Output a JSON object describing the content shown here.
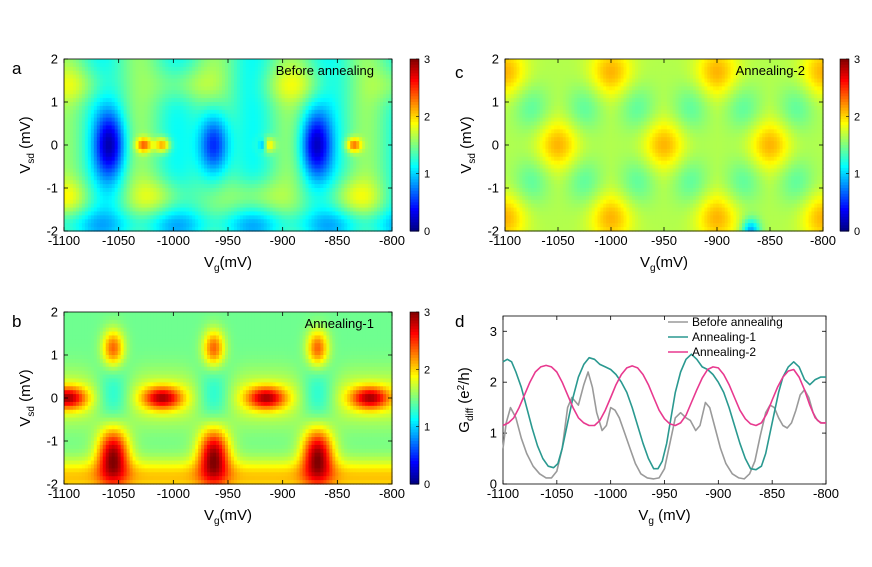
{
  "chart_data": [
    {
      "id": "a",
      "panel_letter": "a",
      "type": "heatmap",
      "label": "Before annealing",
      "xlabel_main": "V",
      "xlabel_sub": "g",
      "xlabel_unit": "(mV)",
      "ylabel_main": "V",
      "ylabel_sub": "sd",
      "ylabel_unit": " (mV)",
      "xlim": [
        -1100,
        -800
      ],
      "ylim": [
        -2,
        2
      ],
      "xticks": [
        "-1100",
        "-1050",
        "-1000",
        "-950",
        "-900",
        "-850",
        "-800"
      ],
      "yticks": [
        "2",
        "1",
        "0",
        "-1",
        "-2"
      ],
      "colorbar": {
        "range": [
          0,
          3
        ],
        "ticks": [
          "3",
          "2",
          "1",
          "0"
        ]
      },
      "model": "before",
      "centers_mV": [
        -1058,
        -963,
        -870
      ]
    },
    {
      "id": "b",
      "panel_letter": "b",
      "type": "heatmap",
      "label": "Annealing-1",
      "xlabel_main": "V",
      "xlabel_sub": "g",
      "xlabel_unit": "(mV)",
      "ylabel_main": "V",
      "ylabel_sub": "sd",
      "ylabel_unit": " (mV)",
      "xlim": [
        -1100,
        -800
      ],
      "ylim": [
        -2,
        2
      ],
      "xticks": [
        "-1100",
        "-1050",
        "-1000",
        "-950",
        "-900",
        "-850",
        "-800"
      ],
      "yticks": [
        "2",
        "1",
        "0",
        "-1",
        "-2"
      ],
      "colorbar": {
        "range": [
          0,
          3
        ],
        "ticks": [
          "3",
          "2",
          "1",
          "0"
        ]
      },
      "model": "ann1",
      "centers_mV": [
        -1055,
        -963,
        -868
      ]
    },
    {
      "id": "c",
      "panel_letter": "c",
      "type": "heatmap",
      "label": "Annealing-2",
      "xlabel_main": "V",
      "xlabel_sub": "g",
      "xlabel_unit": "(mV)",
      "ylabel_main": "V",
      "ylabel_sub": "sd",
      "ylabel_unit": " (mV)",
      "xlim": [
        -1100,
        -800
      ],
      "ylim": [
        -2,
        2
      ],
      "xticks": [
        "-1100",
        "-1050",
        "-1000",
        "-950",
        "-900",
        "-850",
        "-800"
      ],
      "yticks": [
        "2",
        "1",
        "0",
        "-1",
        "-2"
      ],
      "colorbar": {
        "range": [
          0,
          3
        ],
        "ticks": [
          "3",
          "2",
          "1",
          "0"
        ]
      },
      "model": "ann2",
      "period_mV": 100
    },
    {
      "id": "d",
      "panel_letter": "d",
      "type": "line",
      "xlabel_main": "V",
      "xlabel_sub": "g",
      "xlabel_unit": " (mV)",
      "ylabel_main": "G",
      "ylabel_sub": "diff",
      "ylabel_unit_pre": " (e",
      "ylabel_unit_sup": "2",
      "ylabel_unit_post": "/h)",
      "xlim": [
        -1100,
        -800
      ],
      "ylim": [
        0,
        3.3
      ],
      "xticks": [
        "-1100",
        "-1050",
        "-1000",
        "-950",
        "-900",
        "-850",
        "-800"
      ],
      "yticks": [
        "0",
        "1",
        "2",
        "3"
      ],
      "legend_position": "top-right",
      "series": [
        {
          "name": "Before annealing",
          "color": "#9a9a9a",
          "x": [
            -1100,
            -1097,
            -1093,
            -1088,
            -1083,
            -1078,
            -1072,
            -1066,
            -1060,
            -1055,
            -1050,
            -1045,
            -1040,
            -1036,
            -1030,
            -1025,
            -1021,
            -1017,
            -1013,
            -1008,
            -1004,
            -1000,
            -996,
            -992,
            -987,
            -982,
            -977,
            -972,
            -966,
            -960,
            -955,
            -950,
            -945,
            -940,
            -935,
            -930,
            -926,
            -921,
            -917,
            -912,
            -908,
            -903,
            -898,
            -893,
            -887,
            -881,
            -876,
            -871,
            -866,
            -861,
            -856,
            -852,
            -848,
            -844,
            -840,
            -836,
            -832,
            -828,
            -824,
            -820,
            -816,
            -812,
            -808,
            -804,
            -800
          ],
          "y": [
            0.7,
            1.2,
            1.5,
            1.3,
            0.9,
            0.6,
            0.35,
            0.2,
            0.12,
            0.12,
            0.25,
            0.7,
            1.5,
            1.7,
            1.55,
            1.95,
            2.2,
            1.9,
            1.4,
            1.05,
            1.15,
            1.5,
            1.45,
            1.3,
            1.0,
            0.7,
            0.4,
            0.2,
            0.12,
            0.1,
            0.12,
            0.3,
            0.8,
            1.3,
            1.4,
            1.3,
            1.25,
            1.05,
            1.15,
            1.6,
            1.5,
            1.1,
            0.7,
            0.4,
            0.2,
            0.12,
            0.1,
            0.2,
            0.45,
            0.95,
            1.4,
            1.55,
            1.5,
            1.3,
            1.15,
            1.1,
            1.2,
            1.45,
            1.75,
            1.85,
            1.7,
            1.4,
            1.25,
            1.2,
            1.2
          ]
        },
        {
          "name": "Annealing-1",
          "color": "#2a9990",
          "x": [
            -1100,
            -1096,
            -1092,
            -1088,
            -1083,
            -1078,
            -1073,
            -1068,
            -1063,
            -1058,
            -1053,
            -1049,
            -1045,
            -1040,
            -1035,
            -1030,
            -1025,
            -1020,
            -1015,
            -1010,
            -1005,
            -1000,
            -995,
            -990,
            -985,
            -980,
            -975,
            -970,
            -965,
            -960,
            -956,
            -952,
            -948,
            -944,
            -940,
            -935,
            -930,
            -925,
            -920,
            -915,
            -910,
            -905,
            -900,
            -895,
            -890,
            -885,
            -880,
            -875,
            -870,
            -865,
            -860,
            -856,
            -852,
            -848,
            -844,
            -840,
            -835,
            -830,
            -825,
            -820,
            -815,
            -810,
            -805,
            -800
          ],
          "y": [
            2.4,
            2.45,
            2.4,
            2.2,
            1.9,
            1.5,
            1.1,
            0.75,
            0.5,
            0.35,
            0.32,
            0.4,
            0.7,
            1.2,
            1.7,
            2.1,
            2.35,
            2.48,
            2.45,
            2.35,
            2.3,
            2.25,
            2.15,
            2.0,
            1.8,
            1.5,
            1.15,
            0.8,
            0.5,
            0.3,
            0.3,
            0.45,
            0.8,
            1.3,
            1.8,
            2.2,
            2.45,
            2.55,
            2.45,
            2.3,
            2.25,
            2.15,
            2.0,
            1.8,
            1.5,
            1.15,
            0.8,
            0.5,
            0.3,
            0.28,
            0.35,
            0.6,
            1.0,
            1.4,
            1.8,
            2.1,
            2.3,
            2.4,
            2.3,
            2.05,
            1.95,
            2.05,
            2.1,
            2.1
          ]
        },
        {
          "name": "Annealing-2",
          "color": "#e8398f",
          "x": [
            -1100,
            -1095,
            -1090,
            -1085,
            -1080,
            -1075,
            -1070,
            -1065,
            -1060,
            -1055,
            -1050,
            -1045,
            -1040,
            -1035,
            -1030,
            -1025,
            -1020,
            -1015,
            -1010,
            -1005,
            -1000,
            -995,
            -990,
            -985,
            -980,
            -975,
            -970,
            -965,
            -960,
            -955,
            -950,
            -945,
            -940,
            -935,
            -930,
            -925,
            -920,
            -915,
            -910,
            -905,
            -900,
            -895,
            -890,
            -885,
            -880,
            -875,
            -870,
            -865,
            -860,
            -855,
            -850,
            -845,
            -840,
            -835,
            -830,
            -825,
            -820,
            -815,
            -810,
            -805,
            -800
          ],
          "y": [
            1.15,
            1.2,
            1.3,
            1.5,
            1.75,
            2.0,
            2.2,
            2.3,
            2.33,
            2.3,
            2.2,
            2.0,
            1.75,
            1.5,
            1.3,
            1.2,
            1.15,
            1.15,
            1.25,
            1.45,
            1.7,
            1.95,
            2.15,
            2.28,
            2.32,
            2.28,
            2.15,
            1.95,
            1.7,
            1.45,
            1.28,
            1.18,
            1.15,
            1.2,
            1.35,
            1.6,
            1.85,
            2.08,
            2.25,
            2.3,
            2.28,
            2.15,
            1.95,
            1.7,
            1.45,
            1.28,
            1.18,
            1.15,
            1.2,
            1.38,
            1.65,
            1.9,
            2.1,
            2.22,
            2.25,
            2.1,
            1.85,
            1.55,
            1.3,
            1.2,
            1.2
          ]
        }
      ]
    }
  ]
}
